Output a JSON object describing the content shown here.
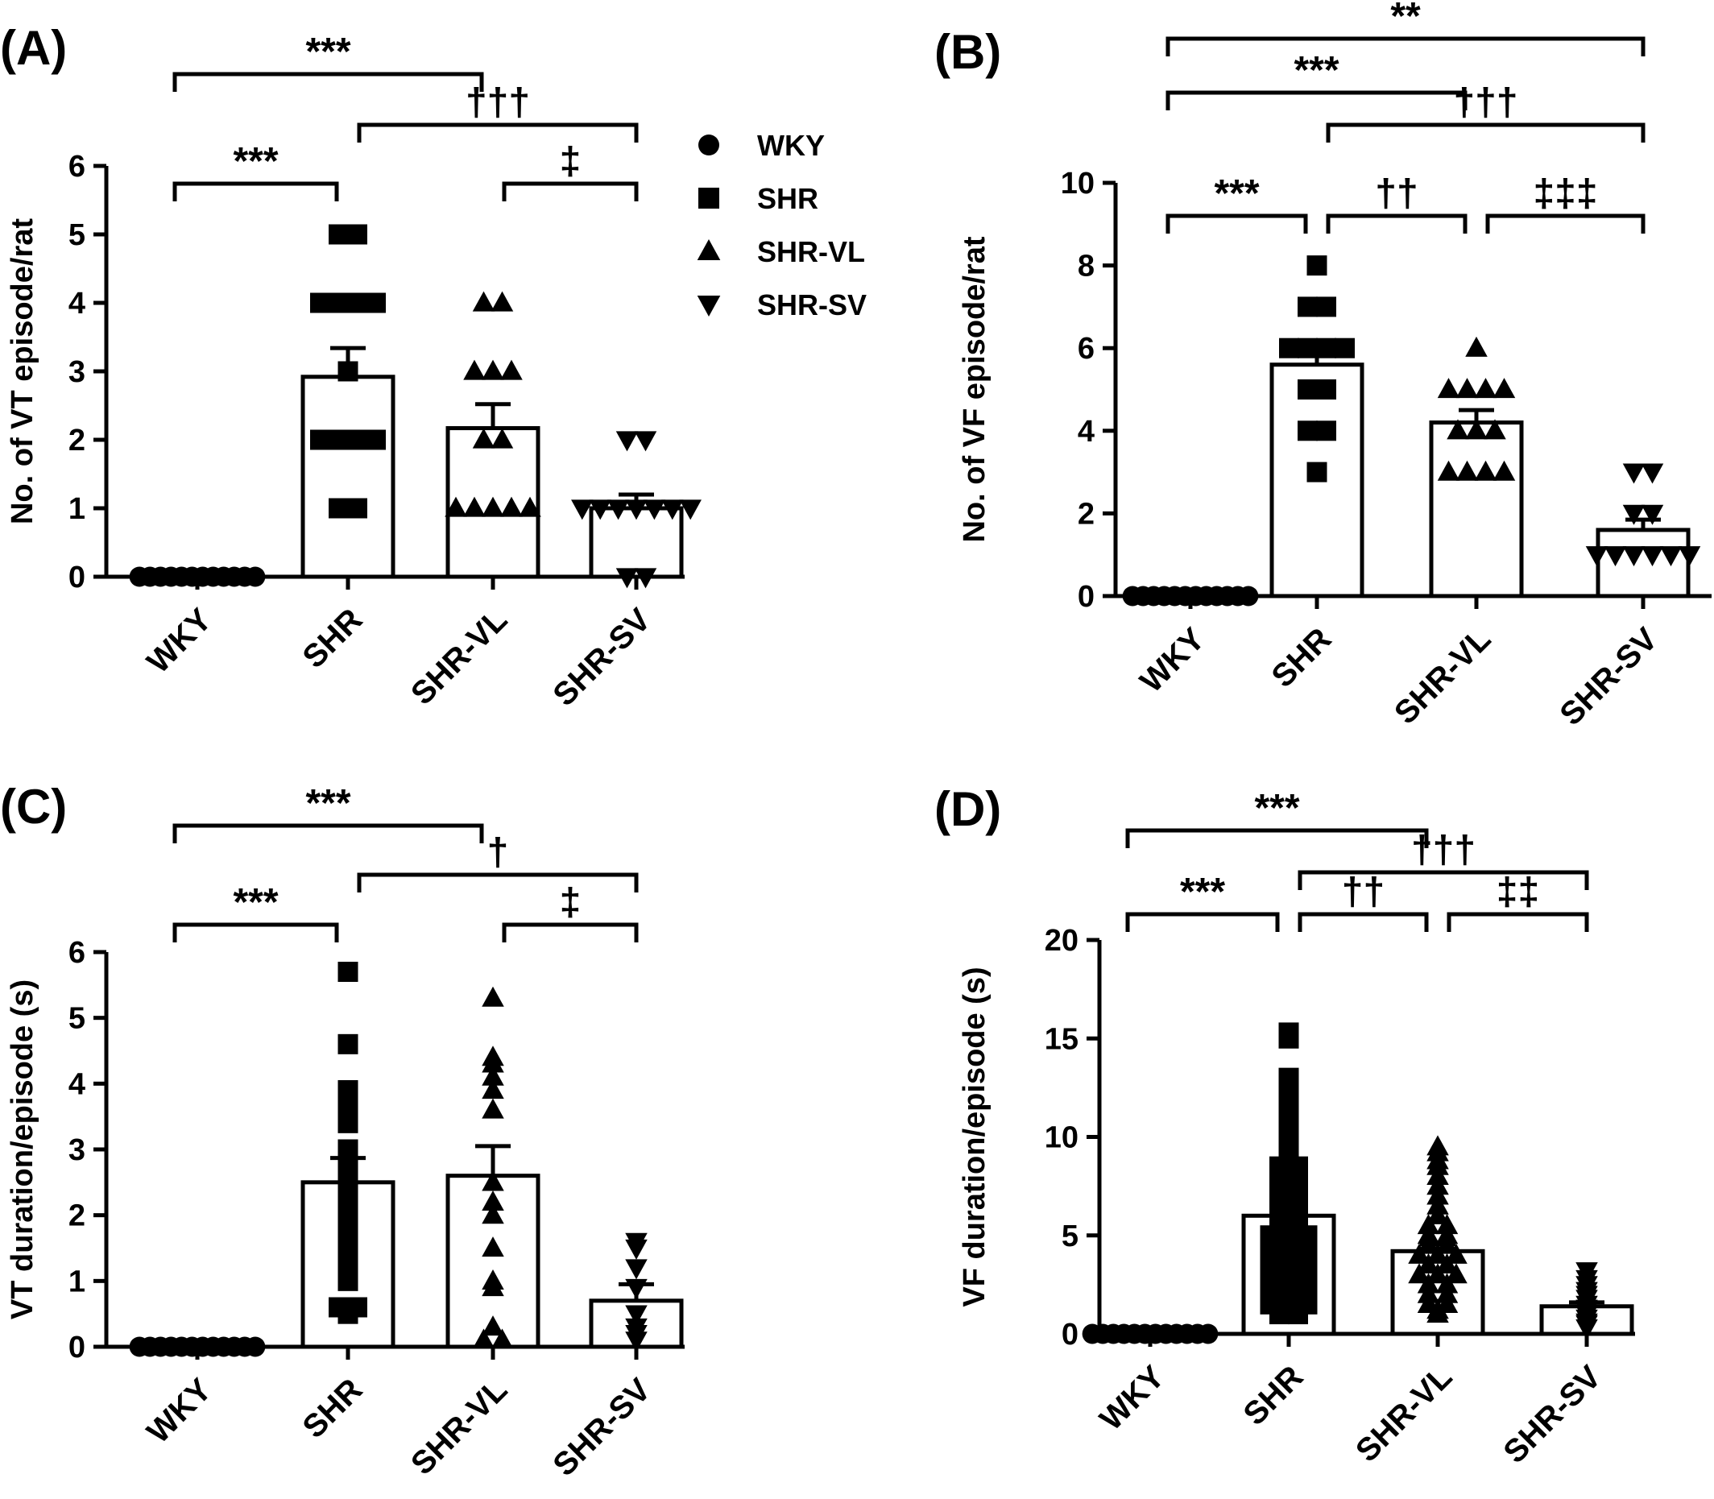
{
  "legend": {
    "placement": "top-right of panel A",
    "entries": [
      {
        "label": "WKY",
        "marker": "circle"
      },
      {
        "label": "SHR",
        "marker": "square"
      },
      {
        "label": "SHR-VL",
        "marker": "triangle-up"
      },
      {
        "label": "SHR-SV",
        "marker": "triangle-down"
      }
    ]
  },
  "colors": {
    "ink": "#000000",
    "bar_fill": "#ffffff"
  },
  "chart_data": [
    {
      "type": "bar",
      "panel": "(A)",
      "ylabel": "No. of VT episode/rat",
      "xlabel": "",
      "ylim": [
        0,
        6
      ],
      "yticks": [
        "0",
        "1",
        "2",
        "3",
        "4",
        "5",
        "6"
      ],
      "categories": [
        "WKY",
        "SHR",
        "SHR-VL",
        "SHR-SV"
      ],
      "markers": [
        "circle",
        "square",
        "triangle-up",
        "triangle-down"
      ],
      "means": [
        0,
        2.92,
        2.17,
        1.0
      ],
      "sem": [
        0,
        0.42,
        0.35,
        0.2
      ],
      "points": [
        [
          0,
          0,
          0,
          0,
          0,
          0,
          0,
          0,
          0,
          0,
          0,
          0
        ],
        [
          5,
          5,
          4,
          4,
          4,
          4,
          3,
          2,
          2,
          2,
          2,
          1,
          1
        ],
        [
          4,
          4,
          3,
          3,
          3,
          2,
          2,
          1,
          1,
          1,
          1,
          1
        ],
        [
          2,
          2,
          1,
          1,
          1,
          1,
          1,
          1,
          1,
          0,
          0
        ]
      ],
      "brackets": [
        {
          "from": 0,
          "to": 2,
          "label": "***",
          "level": 4
        },
        {
          "from": 1,
          "to": 3,
          "label": "†††",
          "level": 3
        },
        {
          "from": 0,
          "to": 1,
          "label": "***",
          "level": 1
        },
        {
          "from": 2,
          "to": 3,
          "label": "‡",
          "level": 1
        }
      ]
    },
    {
      "type": "bar",
      "panel": "(B)",
      "ylabel": "No. of VF episode/rat",
      "xlabel": "",
      "ylim": [
        0,
        10
      ],
      "yticks": [
        "0",
        "2",
        "4",
        "6",
        "8",
        "10"
      ],
      "categories": [
        "WKY",
        "SHR",
        "SHR-VL",
        "SHR-SV"
      ],
      "markers": [
        "circle",
        "square",
        "triangle-up",
        "triangle-down"
      ],
      "means": [
        0,
        5.6,
        4.2,
        1.6
      ],
      "sem": [
        0,
        0.5,
        0.3,
        0.25
      ],
      "points": [
        [
          0,
          0,
          0,
          0,
          0,
          0,
          0,
          0,
          0,
          0,
          0,
          0
        ],
        [
          8,
          7,
          7,
          6,
          6,
          6,
          6,
          5,
          5,
          4,
          4,
          3
        ],
        [
          6,
          5,
          5,
          5,
          5,
          4,
          4,
          4,
          3,
          3,
          3,
          3
        ],
        [
          3,
          3,
          2,
          2,
          1,
          1,
          1,
          1,
          1,
          1
        ]
      ],
      "brackets": [
        {
          "from": 0,
          "to": 3,
          "label": "**",
          "level": 4
        },
        {
          "from": 0,
          "to": 2,
          "label": "***",
          "level": 3
        },
        {
          "from": 1,
          "to": 3,
          "label": "†††",
          "level": 2
        },
        {
          "from": 0,
          "to": 1,
          "label": "***",
          "level": 1
        },
        {
          "from": 1,
          "to": 2,
          "label": "††",
          "level": 1
        },
        {
          "from": 2,
          "to": 3,
          "label": "‡‡‡",
          "level": 1
        }
      ]
    },
    {
      "type": "bar",
      "panel": "(C)",
      "ylabel": "VT duration/episode (s)",
      "xlabel": "",
      "ylim": [
        0,
        6
      ],
      "yticks": [
        "0",
        "1",
        "2",
        "3",
        "4",
        "5",
        "6"
      ],
      "categories": [
        "WKY",
        "SHR",
        "SHR-VL",
        "SHR-SV"
      ],
      "markers": [
        "circle",
        "square",
        "triangle-up",
        "triangle-down"
      ],
      "means": [
        0,
        2.5,
        2.6,
        0.7
      ],
      "sem": [
        0,
        0.37,
        0.45,
        0.25
      ],
      "points": [
        [
          0,
          0,
          0,
          0,
          0,
          0,
          0,
          0,
          0,
          0,
          0,
          0
        ],
        [
          5.7,
          4.6,
          3.9,
          3.8,
          3.7,
          3.4,
          3.0,
          2.8,
          2.5,
          2.3,
          2.1,
          2.0,
          1.8,
          1.6,
          1.3,
          1.0,
          0.6,
          0.6,
          0.5
        ],
        [
          5.3,
          4.4,
          4.3,
          4.1,
          3.9,
          3.6,
          2.5,
          2.2,
          2.0,
          1.5,
          1.0,
          0.9,
          0.3,
          0.1,
          0.1
        ],
        [
          1.6,
          1.5,
          1.2,
          0.9,
          0.5,
          0.3,
          0.2,
          0.1
        ]
      ],
      "brackets": [
        {
          "from": 0,
          "to": 2,
          "label": "***",
          "level": 4
        },
        {
          "from": 1,
          "to": 3,
          "label": "†",
          "level": 3
        },
        {
          "from": 0,
          "to": 1,
          "label": "***",
          "level": 1
        },
        {
          "from": 2,
          "to": 3,
          "label": "‡",
          "level": 1
        }
      ]
    },
    {
      "type": "bar",
      "panel": "(D)",
      "ylabel": "VF duration/episode (s)",
      "xlabel": "",
      "ylim": [
        0,
        20
      ],
      "yticks": [
        "0",
        "5",
        "10",
        "15",
        "20"
      ],
      "categories": [
        "WKY",
        "SHR",
        "SHR-VL",
        "SHR-SV"
      ],
      "markers": [
        "circle",
        "square",
        "triangle-up",
        "triangle-down"
      ],
      "means": [
        0,
        6.0,
        4.2,
        1.4
      ],
      "sem": [
        0,
        0.4,
        0.35,
        0.2
      ],
      "points": [
        [
          0,
          0,
          0,
          0,
          0,
          0,
          0,
          0,
          0,
          0,
          0,
          0
        ],
        [
          15.3,
          15.0,
          13.0,
          12.5,
          12.0,
          11.0,
          10.5,
          10.0,
          9.5,
          9.0,
          8.5,
          8.5,
          8.0,
          8.0,
          7.5,
          7.0,
          7.0,
          6.5,
          6.5,
          6.0,
          6.0,
          5.5,
          5.5,
          5.0,
          5.0,
          5.0,
          4.5,
          4.5,
          4.0,
          4.0,
          4.0,
          3.5,
          3.5,
          3.5,
          3.0,
          3.0,
          3.0,
          2.5,
          2.5,
          2.5,
          2.0,
          2.0,
          2.0,
          1.5,
          1.5,
          1.5,
          1.2,
          1.2,
          1.0,
          1.0
        ],
        [
          9.5,
          9.2,
          8.8,
          8.5,
          8.0,
          7.5,
          7.0,
          6.5,
          6.0,
          5.5,
          5.5,
          5.0,
          5.0,
          4.5,
          4.5,
          4.0,
          4.0,
          4.0,
          3.5,
          3.5,
          3.0,
          3.0,
          3.0,
          2.5,
          2.5,
          2.0,
          2.0,
          1.5,
          1.5,
          1.2,
          1.0
        ],
        [
          3.2,
          2.8,
          2.5,
          2.2,
          2.0,
          1.8,
          1.5,
          1.3,
          1.2,
          1.0,
          0.8,
          0.6,
          0.5,
          0.3
        ]
      ],
      "brackets": [
        {
          "from": 0,
          "to": 2,
          "label": "***",
          "level": 3
        },
        {
          "from": 1,
          "to": 3,
          "label": "†††",
          "level": 2
        },
        {
          "from": 0,
          "to": 1,
          "label": "***",
          "level": 1
        },
        {
          "from": 1,
          "to": 2,
          "label": "††",
          "level": 1
        },
        {
          "from": 2,
          "to": 3,
          "label": "‡‡",
          "level": 1
        }
      ]
    }
  ]
}
